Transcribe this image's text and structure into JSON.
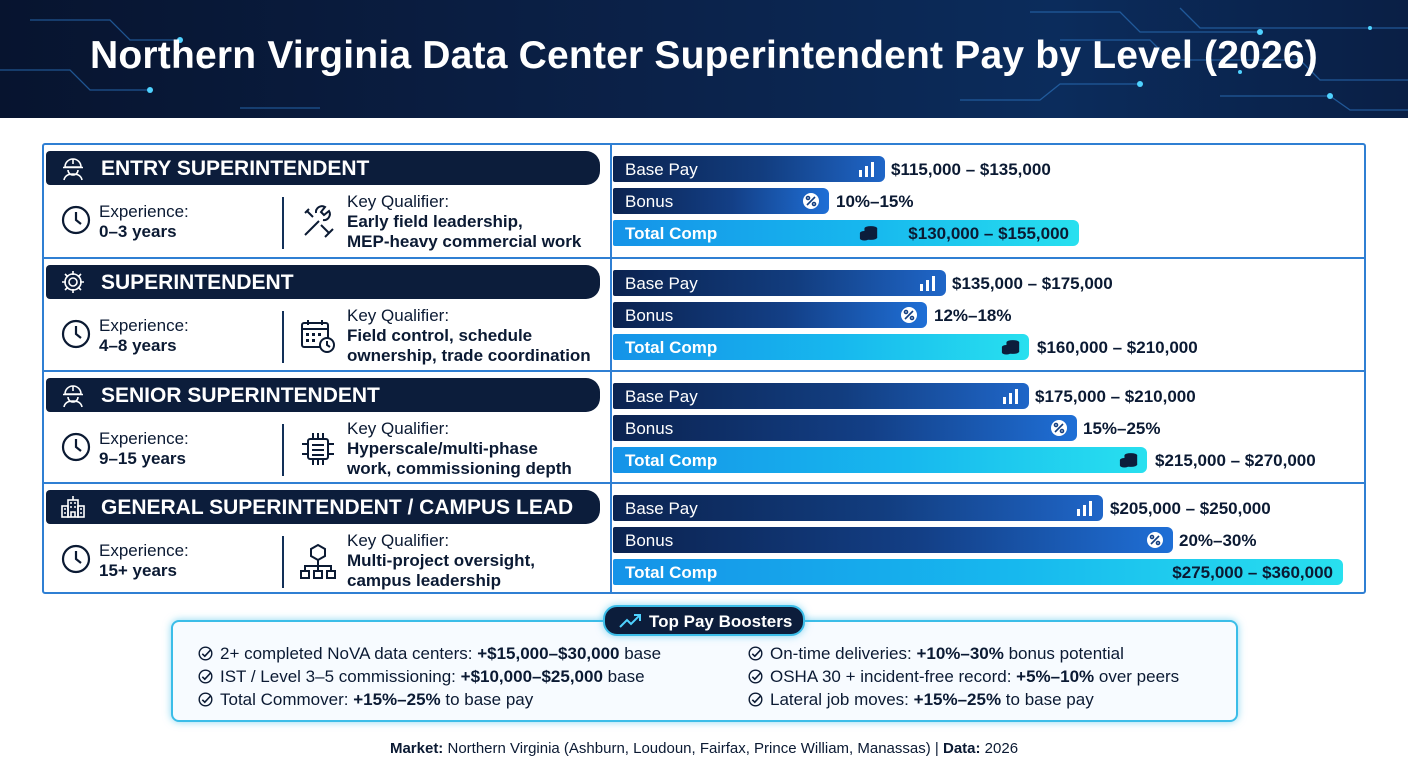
{
  "title": "Northern Virginia Data Center Superintendent Pay by Level (2026)",
  "labels": {
    "experience": "Experience:",
    "key_qualifier": "Key Qualifier:",
    "base_pay": "Base Pay",
    "bonus": "Bonus",
    "total_comp": "Total Comp"
  },
  "colors": {
    "header_navy": "#0c1d3b",
    "border_blue": "#2f7fd3",
    "base_bar": "#1f66c8",
    "total_bar": "#17b8ee",
    "accent_cyan": "#3bbde8"
  },
  "levels": [
    {
      "name": "ENTRY SUPERINTENDENT",
      "icon": "worker-helmet-icon",
      "experience": "0–3 years",
      "qualifier_icon": "tools-icon",
      "qualifier": [
        "Early field leadership,",
        "MEP-heavy commercial work"
      ],
      "base_pay": "$115,000 – $135,000",
      "bonus": "10%–15%",
      "total_comp": "$130,000 – $155,000"
    },
    {
      "name": "SUPERINTENDENT",
      "icon": "gear-icon",
      "experience": "4–8 years",
      "qualifier_icon": "calendar-clock-icon",
      "qualifier": [
        "Field control, schedule",
        "ownership, trade coordination"
      ],
      "base_pay": "$135,000 – $175,000",
      "bonus": "12%–18%",
      "total_comp": "$160,000 – $210,000"
    },
    {
      "name": "SENIOR SUPERINTENDENT",
      "icon": "worker-helmet-icon",
      "experience": "9–15 years",
      "qualifier_icon": "server-chip-icon",
      "qualifier": [
        "Hyperscale/multi-phase",
        "work, commissioning depth"
      ],
      "base_pay": "$175,000 – $210,000",
      "bonus": "15%–25%",
      "total_comp": "$215,000 – $270,000"
    },
    {
      "name": "GENERAL SUPERINTENDENT / CAMPUS LEAD",
      "icon": "campus-building-icon",
      "experience": "15+ years",
      "qualifier_icon": "org-chart-icon",
      "qualifier": [
        "Multi-project oversight,",
        "campus leadership"
      ],
      "base_pay": "$205,000 – $250,000",
      "bonus": "20%–30%",
      "total_comp": "$275,000 – $360,000"
    }
  ],
  "chart_data": {
    "type": "bar",
    "orientation": "horizontal",
    "categories": [
      "ENTRY SUPERINTENDENT",
      "SUPERINTENDENT",
      "SENIOR SUPERINTENDENT",
      "GENERAL SUPERINTENDENT / CAMPUS LEAD"
    ],
    "series": [
      {
        "name": "Base Pay",
        "ranges": [
          [
            115000,
            135000
          ],
          [
            135000,
            175000
          ],
          [
            175000,
            210000
          ],
          [
            205000,
            250000
          ]
        ]
      },
      {
        "name": "Bonus",
        "ranges_percent": [
          [
            10,
            15
          ],
          [
            12,
            18
          ],
          [
            15,
            25
          ],
          [
            20,
            30
          ]
        ]
      },
      {
        "name": "Total Comp",
        "ranges": [
          [
            130000,
            155000
          ],
          [
            160000,
            210000
          ],
          [
            215000,
            270000
          ],
          [
            275000,
            360000
          ]
        ]
      }
    ],
    "grid": false,
    "legend": "none"
  },
  "boosters": {
    "title": "Top Pay Boosters",
    "items": [
      {
        "pre": "2+ completed NoVA data centers: ",
        "bold": "+$15,000–$30,000",
        "post": " base"
      },
      {
        "pre": "IST / Level 3–5 commissioning: ",
        "bold": "+$10,000–$25,000",
        "post": " base"
      },
      {
        "pre": "Total Commover: ",
        "bold": "+15%–25%",
        "post": " to base pay"
      },
      {
        "pre": "On-time deliveries: ",
        "bold": "+10%–30%",
        "post": " bonus potential"
      },
      {
        "pre": "OSHA 30 + incident-free record: ",
        "bold": "+5%–10%",
        "post": " over peers"
      },
      {
        "pre": "Lateral job moves: ",
        "bold": "+15%–25%",
        "post": " to base pay"
      }
    ]
  },
  "footer": {
    "market_label": "Market:",
    "market_value": " Northern Virginia (Ashburn, Loudoun, Fairfax, Prince William, Manassas) | ",
    "data_label": "Data:",
    "data_value": " 2026"
  }
}
